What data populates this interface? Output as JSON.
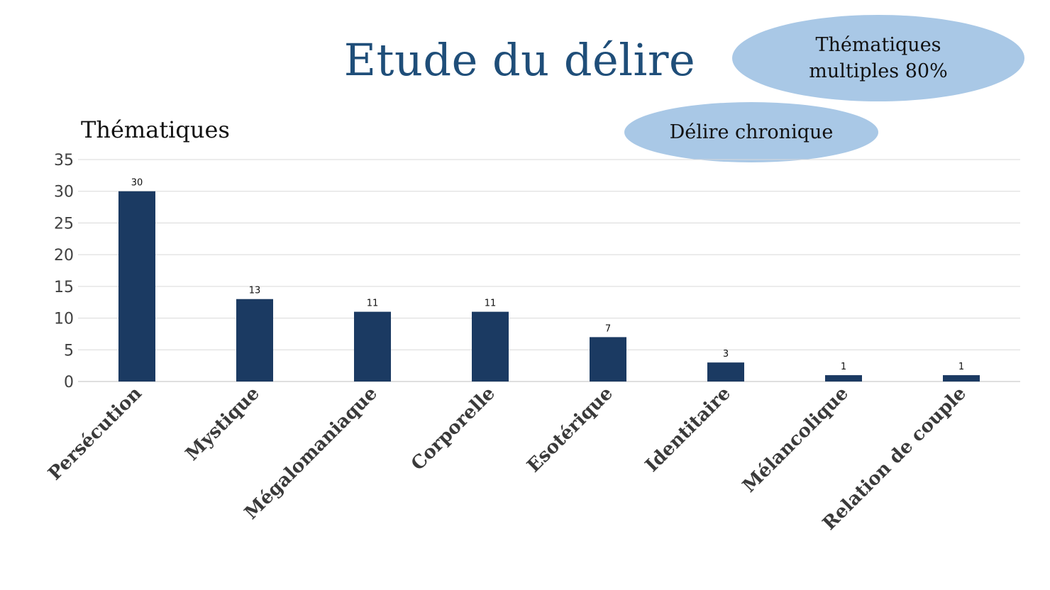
{
  "slide": {
    "title": "Etude du délire",
    "bubble_multi_line1": "Thématiques",
    "bubble_multi_line2": "multiples 80%",
    "bubble_chronic": "Délire chronique",
    "subtitle": "Thématiques"
  },
  "colors": {
    "bar": "#1b3a62",
    "title": "#1f4e79",
    "bubble": "#a9c8e6",
    "grid": "#d9d9d9"
  },
  "chart_data": {
    "type": "bar",
    "title": "Thématiques",
    "xlabel": "",
    "ylabel": "",
    "categories": [
      "Persécution",
      "Mystique",
      "Mégalomaniaque",
      "Corporelle",
      "Esotérique",
      "Identitaire",
      "Mélancolique",
      "Relation de couple"
    ],
    "values": [
      30,
      13,
      11,
      11,
      7,
      3,
      1,
      1
    ],
    "ylim": [
      0,
      35
    ],
    "yticks": [
      0,
      5,
      10,
      15,
      20,
      25,
      30,
      35
    ],
    "data_labels": true,
    "grid": true,
    "legend": "none"
  }
}
